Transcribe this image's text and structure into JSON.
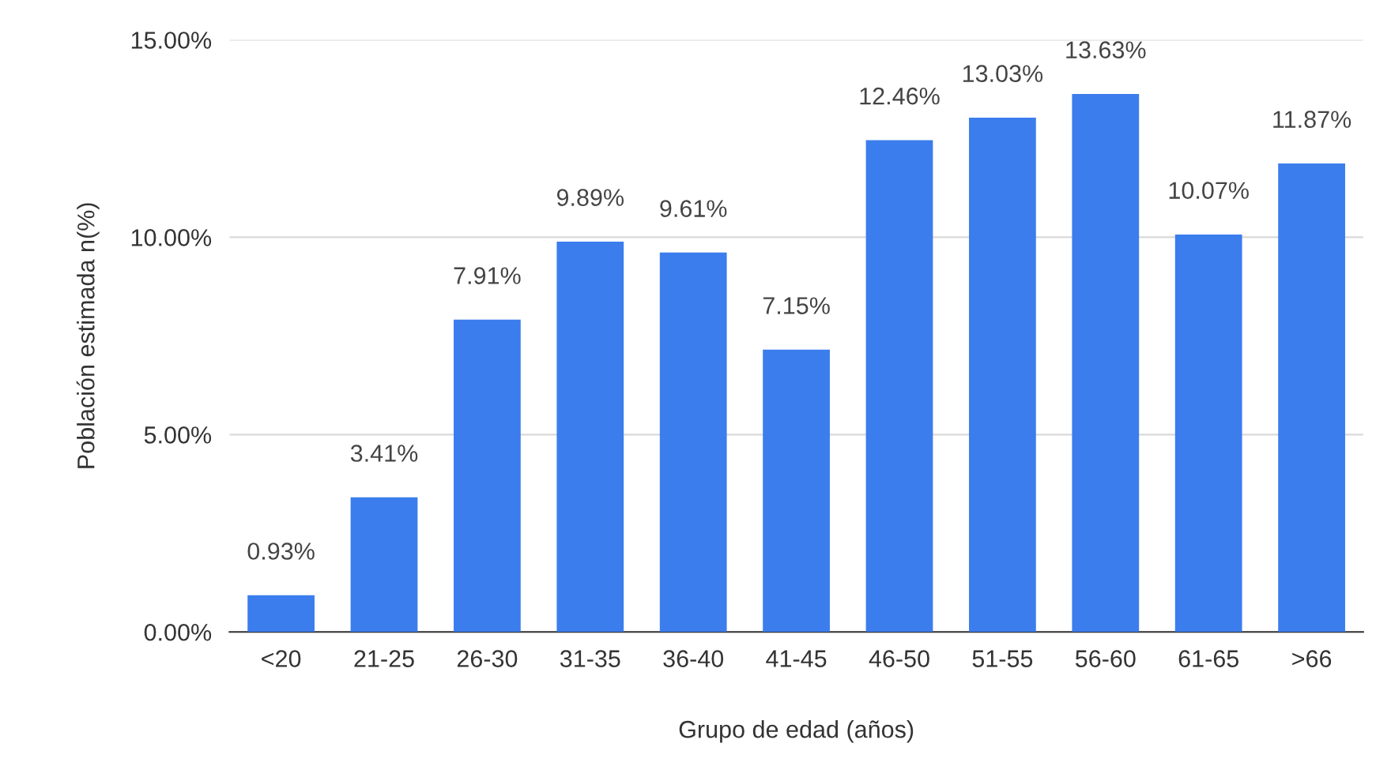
{
  "chart_data": {
    "type": "bar",
    "categories": [
      "<20",
      "21-25",
      "26-30",
      "31-35",
      "36-40",
      "41-45",
      "46-50",
      "51-55",
      "56-60",
      "61-65",
      ">66"
    ],
    "values": [
      0.93,
      3.41,
      7.91,
      9.89,
      9.61,
      7.15,
      12.46,
      13.03,
      13.63,
      10.07,
      11.87
    ],
    "value_labels": [
      "0.93%",
      "3.41%",
      "7.91%",
      "9.89%",
      "9.61%",
      "7.15%",
      "12.46%",
      "13.03%",
      "13.63%",
      "10.07%",
      "11.87%"
    ],
    "color": "#3b7ded",
    "xlabel": "Grupo de edad (años)",
    "ylabel": "Población estimada n(%)",
    "ylim": [
      0,
      15
    ],
    "yticks": [
      {
        "value": 0,
        "label": "0.00%"
      },
      {
        "value": 5,
        "label": "5.00%"
      },
      {
        "value": 10,
        "label": "10.00%"
      },
      {
        "value": 15,
        "label": "15.00%"
      }
    ],
    "grid": "y",
    "legend": false
  }
}
